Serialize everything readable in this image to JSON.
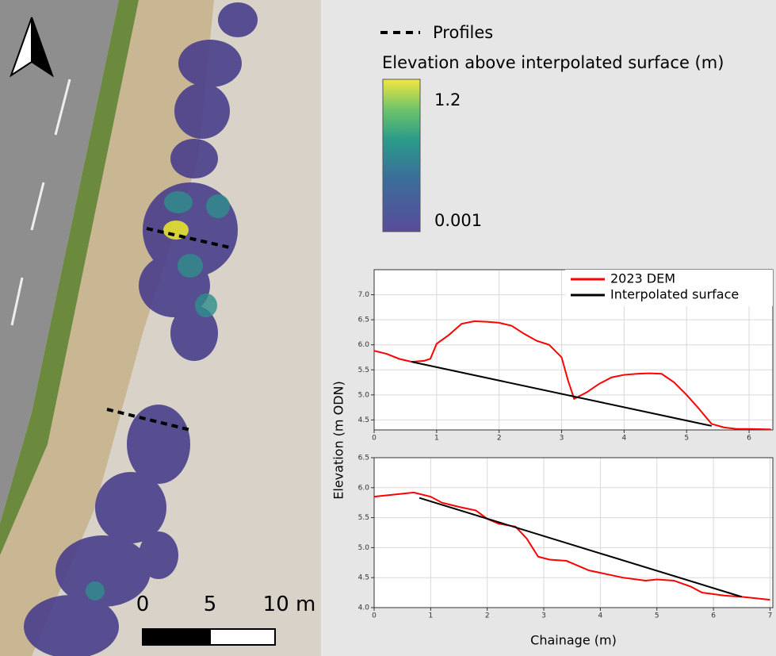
{
  "map": {
    "legend": {
      "profiles": "Profiles",
      "title": "Elevation above interpolated surface (m)",
      "colorbar_max": 1.2,
      "colorbar_min": 0.001
    },
    "scale_bar": {
      "labels": [
        "0",
        "5",
        "10 m"
      ]
    }
  },
  "chart_data": [
    {
      "type": "line",
      "legend_position": "upper right",
      "grid": true,
      "ylabel": "Elevation (m ODN)",
      "xlim": [
        0,
        6.38
      ],
      "xticks": [
        0,
        1,
        2,
        3,
        4,
        5,
        6
      ],
      "ylim": [
        4.3,
        7.5
      ],
      "yticks": [
        4.5,
        {
          "value": 5,
          "label": "5.0"
        },
        5.5,
        {
          "value": 6,
          "label": "6.0"
        },
        6.5,
        {
          "value": 7,
          "label": "7.0"
        }
      ],
      "series": [
        {
          "name": "2023 DEM",
          "color": "#ff0000",
          "x": [
            0,
            0.2,
            0.4,
            0.6,
            0.8,
            0.9,
            1.0,
            1.2,
            1.4,
            1.6,
            1.8,
            2.0,
            2.2,
            2.4,
            2.6,
            2.8,
            3.0,
            3.1,
            3.2,
            3.4,
            3.6,
            3.8,
            4.0,
            4.2,
            4.4,
            4.6,
            4.8,
            5.0,
            5.2,
            5.4,
            5.6,
            5.8,
            6.0,
            6.35
          ],
          "values": [
            5.88,
            5.82,
            5.72,
            5.66,
            5.68,
            5.72,
            6.02,
            6.2,
            6.42,
            6.47,
            6.46,
            6.44,
            6.38,
            6.22,
            6.08,
            6.0,
            5.75,
            5.3,
            4.92,
            5.05,
            5.22,
            5.35,
            5.4,
            5.42,
            5.43,
            5.42,
            5.25,
            5.0,
            4.72,
            4.42,
            4.35,
            4.32,
            4.32,
            4.31
          ]
        },
        {
          "name": "Interpolated surface",
          "color": "#000000",
          "x": [
            0.6,
            5.4
          ],
          "values": [
            5.66,
            4.38
          ]
        }
      ]
    },
    {
      "type": "line",
      "grid": true,
      "xlabel": "Chainage (m)",
      "xlim": [
        0,
        7.05
      ],
      "xticks": [
        0,
        1,
        2,
        3,
        4,
        5,
        6,
        7
      ],
      "ylim": [
        4.0,
        6.5
      ],
      "yticks": [
        {
          "value": 4,
          "label": "4.0"
        },
        4.5,
        {
          "value": 5,
          "label": "5.0"
        },
        5.5,
        {
          "value": 6,
          "label": "6.0"
        },
        6.5
      ],
      "series": [
        {
          "color": "#ff0000",
          "x": [
            0,
            0.3,
            0.7,
            1.0,
            1.2,
            1.5,
            1.8,
            2.0,
            2.2,
            2.5,
            2.7,
            2.9,
            3.1,
            3.4,
            3.6,
            3.8,
            4.0,
            4.4,
            4.8,
            5.0,
            5.3,
            5.6,
            5.8,
            6.2,
            6.5,
            7.0
          ],
          "values": [
            5.85,
            5.88,
            5.92,
            5.85,
            5.75,
            5.68,
            5.62,
            5.48,
            5.4,
            5.35,
            5.15,
            4.85,
            4.8,
            4.78,
            4.7,
            4.62,
            4.58,
            4.5,
            4.45,
            4.47,
            4.45,
            4.35,
            4.25,
            4.2,
            4.18,
            4.13
          ]
        },
        {
          "color": "#000000",
          "x": [
            0.8,
            6.5
          ],
          "values": [
            5.83,
            4.18
          ]
        }
      ]
    }
  ]
}
